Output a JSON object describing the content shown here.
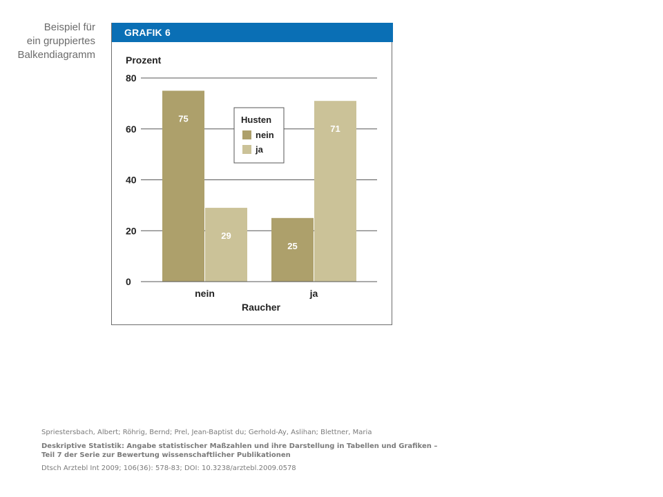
{
  "side_caption": {
    "lines": [
      "Beispiel für",
      "ein gruppiertes",
      "Balkendiagramm"
    ]
  },
  "figure": {
    "header": "GRAFIK 6"
  },
  "colors": {
    "header_bg": "#0a6fb5",
    "series_nein": "#ada06b",
    "series_ja": "#cbc298",
    "gridline": "#555555"
  },
  "chart_data": {
    "type": "bar",
    "title": "",
    "ylabel": "Prozent",
    "xlabel": "Raucher",
    "ylim": [
      0,
      80
    ],
    "yticks": [
      0,
      20,
      40,
      60,
      80
    ],
    "categories": [
      "nein",
      "ja"
    ],
    "series": [
      {
        "name": "nein",
        "values": [
          75,
          25
        ]
      },
      {
        "name": "ja",
        "values": [
          29,
          71
        ]
      }
    ],
    "data_labels": [
      [
        "75",
        "25"
      ],
      [
        "29",
        "71"
      ]
    ],
    "legend": {
      "title": "Husten",
      "entries": [
        "nein",
        "ja"
      ],
      "placement": "top-center"
    },
    "grid": true
  },
  "citation": {
    "authors": "Spriestersbach, Albert; Röhrig, Bernd; Prel, Jean-Baptist du; Gerhold-Ay, Aslihan; Blettner, Maria",
    "title_line1": "Deskriptive Statistik: Angabe statistischer Maßzahlen und ihre Darstellung in Tabellen und Grafiken –",
    "title_line2": "Teil 7 der Serie zur Bewertung wissenschaftlicher  Publikationen",
    "source": "Dtsch Arztebl Int 2009; 106(36): 578-83; DOI: 10.3238/arztebl.2009.0578"
  }
}
